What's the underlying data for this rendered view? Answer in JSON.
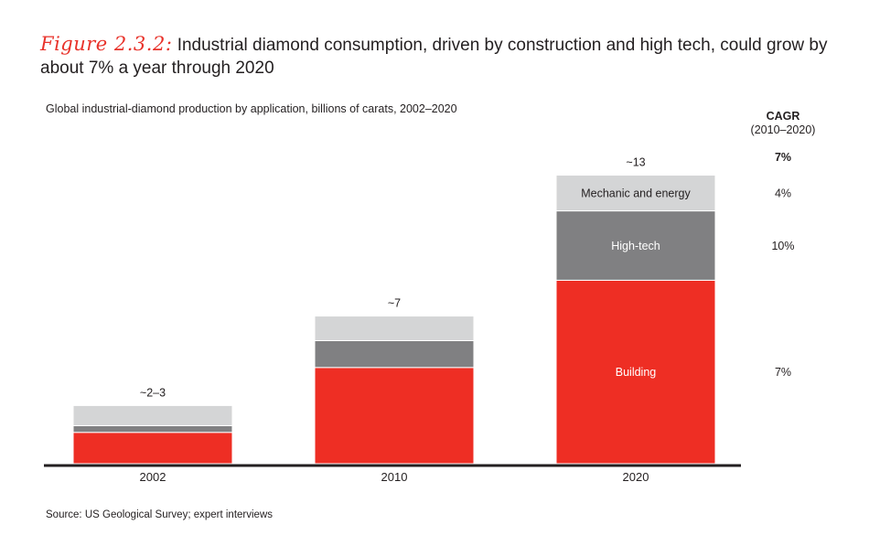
{
  "figure": {
    "label": "Figure 2.3.2:",
    "title": "Industrial diamond consumption, driven by construction and high tech, could grow by about 7% a year through 2020"
  },
  "source": "Source: US Geological Survey; expert interviews",
  "colors": {
    "building": "#ee2e24",
    "hightech": "#808082",
    "mechanic": "#d4d5d6",
    "axis": "#231f20"
  },
  "chart_data": {
    "type": "bar",
    "stacked": true,
    "title": "Global industrial-diamond production by application, billions of carats, 2002–2020",
    "categories": [
      "2002",
      "2010",
      "2020"
    ],
    "totals_labels": [
      "~2–3",
      "~7",
      "~13"
    ],
    "series": [
      {
        "name": "Building",
        "values": [
          1.4,
          4.3,
          8.2
        ]
      },
      {
        "name": "High-tech",
        "values": [
          0.3,
          1.2,
          3.1
        ]
      },
      {
        "name": "Mechanic and energy",
        "values": [
          0.9,
          1.1,
          1.6
        ]
      }
    ],
    "segment_labels": {
      "Building": [
        "",
        "",
        "Building"
      ],
      "High-tech": [
        "",
        "",
        "High-tech"
      ],
      "Mechanic and energy": [
        "",
        "",
        "Mechanic and energy"
      ]
    },
    "ylim": [
      0,
      13
    ],
    "cagr": {
      "header": "CAGR",
      "period": "(2010–2020)",
      "total": "7%",
      "values": {
        "Mechanic and energy": "4%",
        "High-tech": "10%",
        "Building": "7%"
      }
    }
  }
}
